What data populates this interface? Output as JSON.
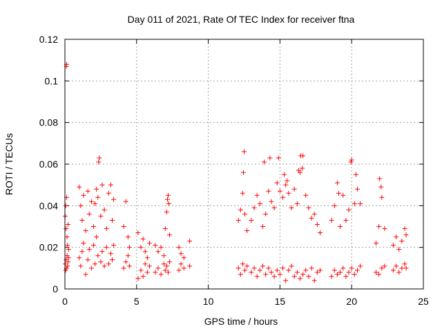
{
  "chart_data": {
    "type": "scatter",
    "title": "Day 011 of 2021, Rate Of TEC Index for receiver ftna",
    "xlabel": "GPS time / hours",
    "ylabel": "ROTI / TECUs",
    "xlim": [
      0,
      25
    ],
    "ylim": [
      0,
      0.12
    ],
    "xticks": [
      "0",
      "5",
      "10",
      "15",
      "20",
      "25"
    ],
    "yticks": [
      "0",
      "0.02",
      "0.04",
      "0.06",
      "0.08",
      "0.1",
      "0.12"
    ],
    "grid": true,
    "marker": "+",
    "color": "#ff0000",
    "x": [
      0.02,
      0.02,
      0.05,
      0.05,
      0.08,
      0.08,
      0.12,
      0.12,
      0.15,
      0.15,
      0.18,
      0.18,
      0.22,
      0.22,
      0.25,
      0.25,
      0.1,
      0.12,
      1.0,
      1.0,
      1.1,
      1.1,
      1.2,
      1.2,
      1.3,
      1.3,
      1.45,
      1.45,
      1.6,
      1.6,
      1.7,
      1.7,
      1.85,
      1.85,
      2.0,
      2.0,
      2.1,
      2.1,
      2.2,
      2.2,
      2.3,
      2.3,
      2.35,
      2.4,
      2.5,
      2.5,
      2.6,
      2.6,
      2.75,
      2.75,
      2.9,
      2.9,
      3.05,
      3.05,
      3.2,
      3.2,
      3.3,
      3.3,
      3.4,
      3.4,
      4.1,
      4.1,
      4.25,
      4.25,
      4.4,
      4.4,
      4.5,
      4.5,
      5.1,
      5.1,
      5.3,
      5.3,
      5.45,
      5.45,
      5.6,
      5.6,
      5.75,
      5.75,
      5.9,
      5.9,
      6.3,
      6.3,
      6.5,
      6.5,
      6.7,
      6.7,
      6.9,
      6.9,
      7.0,
      7.0,
      7.1,
      7.1,
      7.2,
      7.2,
      7.3,
      7.3,
      7.15,
      7.25,
      7.95,
      7.95,
      8.1,
      8.1,
      8.3,
      8.3,
      8.7,
      8.7,
      12.1,
      12.1,
      12.25,
      12.25,
      12.4,
      12.4,
      12.55,
      12.55,
      12.7,
      12.7,
      12.45,
      12.5,
      13.0,
      13.0,
      13.2,
      13.2,
      13.4,
      13.4,
      13.6,
      13.6,
      13.8,
      13.8,
      14.0,
      14.0,
      14.2,
      14.2,
      14.4,
      14.4,
      14.6,
      14.6,
      14.8,
      14.8,
      15.0,
      15.0,
      15.2,
      15.2,
      15.4,
      15.4,
      15.6,
      15.6,
      15.8,
      15.8,
      13.9,
      14.3,
      14.9,
      15.3,
      15.5,
      16.0,
      16.0,
      16.2,
      16.2,
      16.4,
      16.4,
      16.6,
      16.6,
      16.8,
      16.8,
      17.0,
      17.0,
      17.2,
      17.2,
      17.4,
      17.4,
      17.6,
      17.6,
      17.8,
      17.8,
      16.45,
      16.55,
      16.3,
      18.6,
      18.6,
      18.8,
      18.8,
      19.0,
      19.0,
      19.2,
      19.2,
      19.4,
      19.4,
      19.6,
      19.6,
      19.8,
      19.8,
      20.0,
      20.0,
      20.2,
      20.2,
      20.4,
      20.4,
      20.6,
      20.6,
      19.95,
      20.3,
      19.1,
      21.7,
      21.7,
      21.9,
      21.9,
      22.1,
      22.1,
      22.3,
      22.3,
      21.95,
      22.05,
      22.9,
      22.9,
      23.1,
      23.1,
      23.3,
      23.3,
      23.5,
      23.5,
      23.7,
      23.7,
      23.8,
      23.8
    ],
    "y": [
      0.012,
      0.035,
      0.009,
      0.04,
      0.014,
      0.029,
      0.01,
      0.044,
      0.016,
      0.025,
      0.011,
      0.021,
      0.013,
      0.031,
      0.015,
      0.019,
      0.107,
      0.108,
      0.015,
      0.049,
      0.011,
      0.04,
      0.018,
      0.033,
      0.022,
      0.045,
      0.007,
      0.028,
      0.014,
      0.047,
      0.019,
      0.036,
      0.01,
      0.042,
      0.021,
      0.03,
      0.012,
      0.041,
      0.025,
      0.048,
      0.016,
      0.044,
      0.061,
      0.063,
      0.013,
      0.035,
      0.018,
      0.05,
      0.011,
      0.038,
      0.02,
      0.029,
      0.012,
      0.046,
      0.017,
      0.05,
      0.014,
      0.033,
      0.021,
      0.043,
      0.01,
      0.03,
      0.013,
      0.042,
      0.016,
      0.025,
      0.011,
      0.02,
      0.005,
      0.027,
      0.009,
      0.02,
      0.006,
      0.024,
      0.012,
      0.018,
      0.008,
      0.015,
      0.011,
      0.022,
      0.008,
      0.021,
      0.01,
      0.018,
      0.007,
      0.02,
      0.012,
      0.016,
      0.009,
      0.029,
      0.011,
      0.037,
      0.008,
      0.045,
      0.013,
      0.026,
      0.043,
      0.041,
      0.009,
      0.02,
      0.012,
      0.017,
      0.01,
      0.015,
      0.011,
      0.023,
      0.01,
      0.033,
      0.007,
      0.038,
      0.012,
      0.046,
      0.009,
      0.036,
      0.011,
      0.028,
      0.056,
      0.066,
      0.008,
      0.033,
      0.01,
      0.039,
      0.006,
      0.045,
      0.009,
      0.041,
      0.011,
      0.03,
      0.007,
      0.036,
      0.01,
      0.047,
      0.008,
      0.042,
      0.006,
      0.039,
      0.009,
      0.051,
      0.007,
      0.047,
      0.01,
      0.044,
      0.004,
      0.05,
      0.009,
      0.046,
      0.011,
      0.039,
      0.061,
      0.063,
      0.063,
      0.055,
      0.052,
      0.006,
      0.048,
      0.008,
      0.041,
      0.005,
      0.056,
      0.007,
      0.064,
      0.009,
      0.045,
      0.006,
      0.039,
      0.01,
      0.034,
      0.004,
      0.036,
      0.008,
      0.031,
      0.009,
      0.027,
      0.064,
      0.058,
      0.057,
      0.006,
      0.033,
      0.009,
      0.04,
      0.007,
      0.051,
      0.008,
      0.03,
      0.01,
      0.045,
      0.006,
      0.033,
      0.008,
      0.038,
      0.01,
      0.062,
      0.007,
      0.041,
      0.009,
      0.048,
      0.011,
      0.041,
      0.061,
      0.055,
      0.046,
      0.008,
      0.022,
      0.007,
      0.03,
      0.01,
      0.044,
      0.011,
      0.029,
      0.053,
      0.049,
      0.009,
      0.021,
      0.011,
      0.025,
      0.008,
      0.019,
      0.01,
      0.023,
      0.012,
      0.029,
      0.01,
      0.026
    ]
  }
}
